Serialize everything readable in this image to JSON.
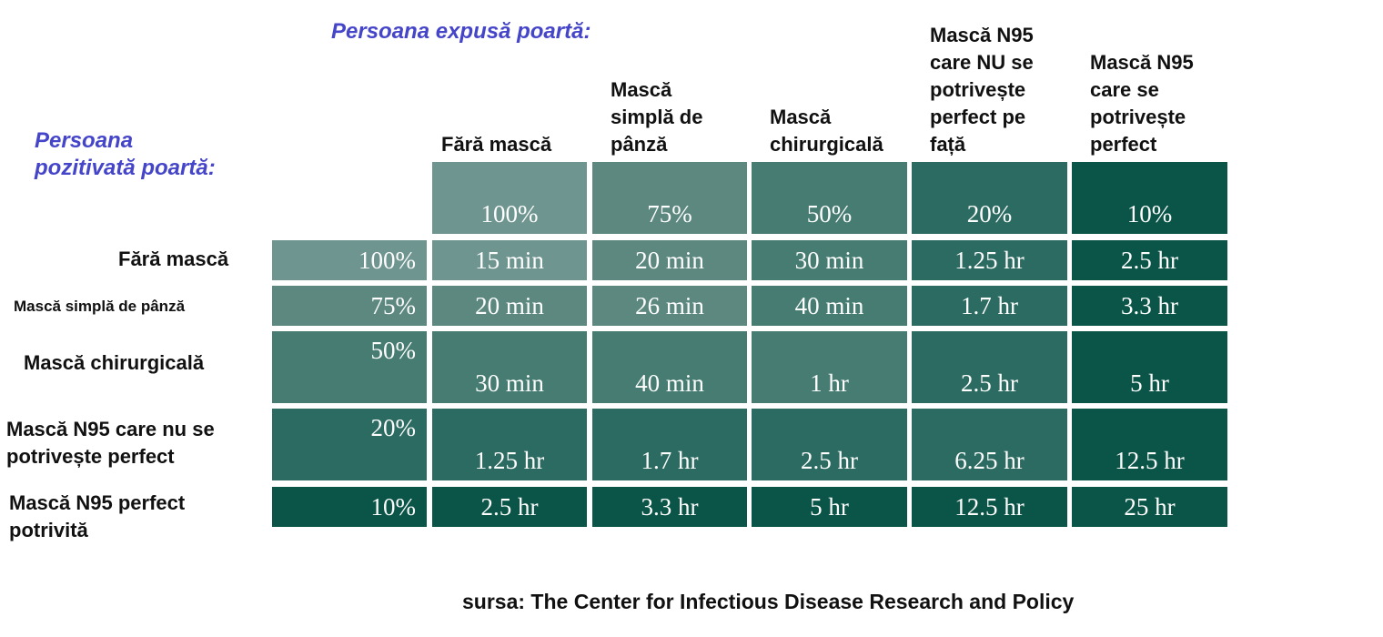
{
  "exposed_title": "Persoana expusă poartă:",
  "positive_title": [
    "Persoana",
    "pozitivată poartă:"
  ],
  "source": "sursa: The Center for Infectious Disease Research and Policy",
  "colors": {
    "label_blue": "#4545c9",
    "shades": [
      "#6f9590",
      "#5c8880",
      "#467c72",
      "#2c6b61",
      "#0b5548"
    ]
  },
  "chart_data": {
    "type": "table",
    "columns": [
      {
        "label": [
          "Fără mască"
        ],
        "pct": "100%"
      },
      {
        "label": [
          "Mască",
          "simplă de",
          "pânză"
        ],
        "pct": "75%"
      },
      {
        "label": [
          "Mască",
          "chirurgicală"
        ],
        "pct": "50%"
      },
      {
        "label": [
          "Mască N95",
          "care NU se",
          "potrivește",
          "perfect pe",
          "față"
        ],
        "pct": "20%"
      },
      {
        "label": [
          "Mască N95",
          "care se",
          "potrivește",
          "perfect"
        ],
        "pct": "10%"
      }
    ],
    "rows": [
      {
        "label": [
          "Fără mască"
        ],
        "pct": "100%",
        "values": [
          "15 min",
          "20 min",
          "30 min",
          "1.25 hr",
          "2.5 hr"
        ]
      },
      {
        "label": [
          "Mască simplă de pânză"
        ],
        "pct": "75%",
        "values": [
          "20 min",
          "26 min",
          "40 min",
          "1.7 hr",
          "3.3 hr"
        ]
      },
      {
        "label": [
          "Mască chirurgicală"
        ],
        "pct": "50%",
        "values": [
          "30 min",
          "40 min",
          "1 hr",
          "2.5 hr",
          "5 hr"
        ]
      },
      {
        "label": [
          "Mască N95 care nu se",
          "potrivește perfect"
        ],
        "pct": "20%",
        "values": [
          "1.25 hr",
          "1.7 hr",
          "2.5 hr",
          "6.25 hr",
          "12.5 hr"
        ]
      },
      {
        "label": [
          "Mască N95 perfect",
          "potrivită"
        ],
        "pct": "10%",
        "values": [
          "2.5 hr",
          "3.3 hr",
          "5 hr",
          "12.5 hr",
          "25 hr"
        ]
      }
    ]
  }
}
